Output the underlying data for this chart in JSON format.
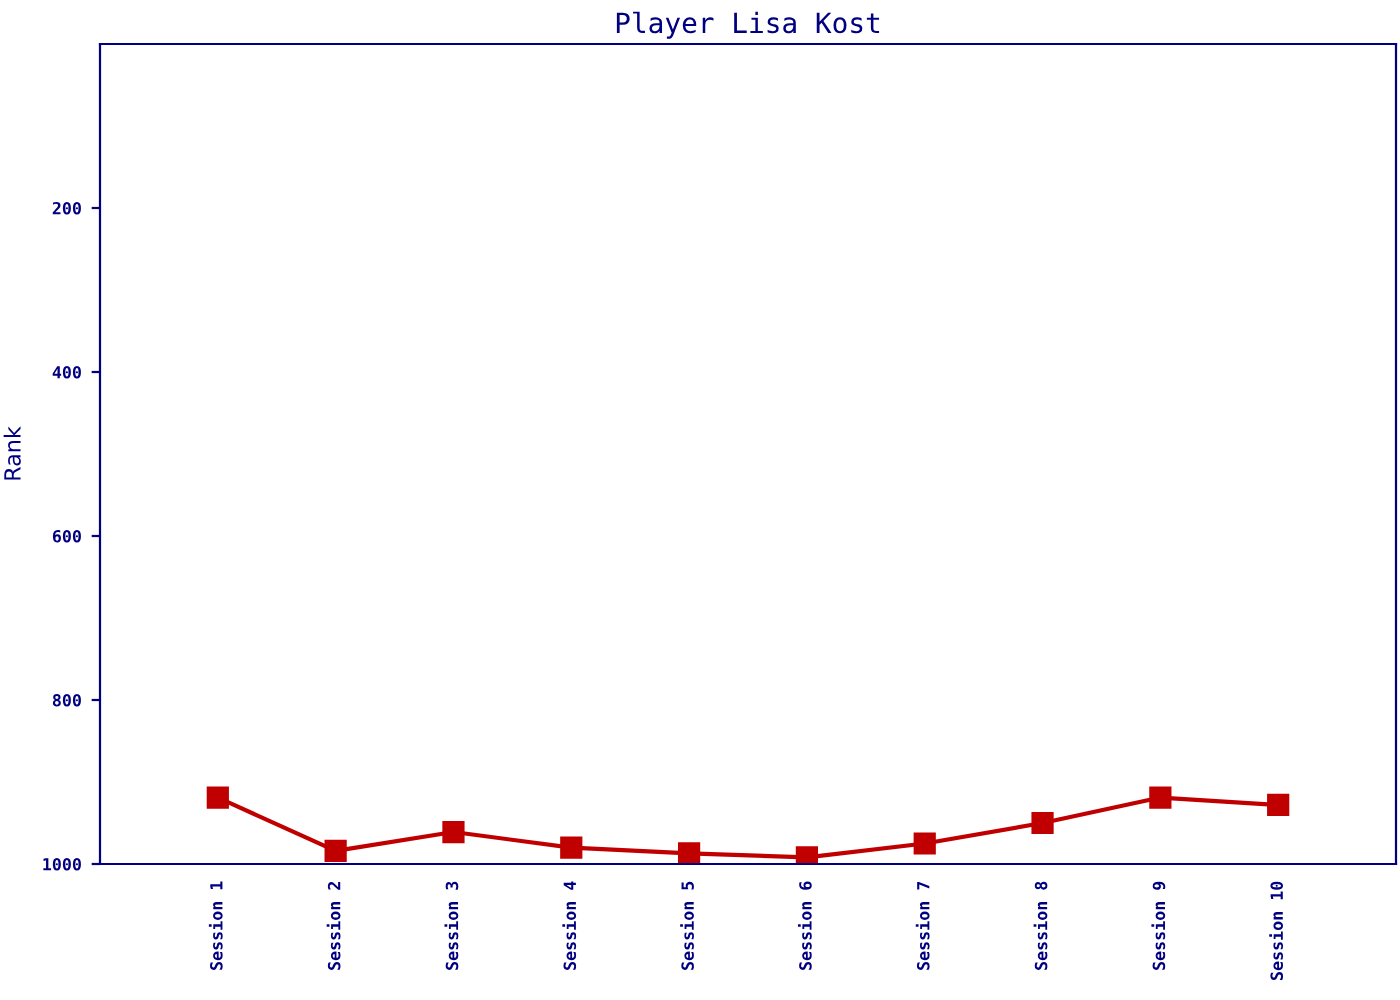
{
  "chart_data": {
    "type": "line",
    "title": "Player Lisa Kost",
    "ylabel": "Rank",
    "categories": [
      "Session 1",
      "Session 2",
      "Session 3",
      "Session 4",
      "Session 5",
      "Session 6",
      "Session 7",
      "Session 8",
      "Session 9",
      "Session 10"
    ],
    "series": [
      {
        "color": "#c00000",
        "values": [
          919,
          984,
          961,
          980,
          987,
          992,
          975,
          950,
          919,
          928
        ]
      }
    ],
    "ylim": [
      1000,
      0
    ],
    "yticks": [
      200,
      400,
      600,
      800,
      1000
    ],
    "grid": false,
    "marker": "square",
    "line_style": "solid"
  }
}
